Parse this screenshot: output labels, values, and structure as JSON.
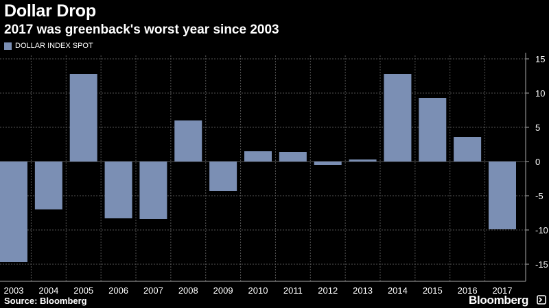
{
  "title": "Dollar Drop",
  "subtitle": "2017 was greenback's worst year since 2003",
  "legend_label": "DOLLAR INDEX SPOT",
  "source": "Source: Bloomberg",
  "brand": "Bloomberg",
  "brand_icon": "bloomberg-terminal-icon",
  "colors": {
    "background": "#000000",
    "bar": "#7b8fb4",
    "grid": "#555555",
    "text": "#ffffff"
  },
  "chart_data": {
    "type": "bar",
    "categories": [
      "2003",
      "2004",
      "2005",
      "2006",
      "2007",
      "2008",
      "2009",
      "2010",
      "2011",
      "2012",
      "2013",
      "2014",
      "2015",
      "2016",
      "2017"
    ],
    "series": [
      {
        "name": "DOLLAR INDEX SPOT",
        "values": [
          -14.7,
          -7.0,
          12.8,
          -8.3,
          -8.4,
          6.0,
          -4.3,
          1.5,
          1.4,
          -0.5,
          0.3,
          12.8,
          9.3,
          3.6,
          -9.9
        ]
      }
    ],
    "ylim": [
      -17.5,
      15.5
    ],
    "yticks": [
      15,
      10,
      5,
      0,
      -5,
      -10,
      -15
    ],
    "ytick_labels": [
      "15",
      "10",
      "5",
      "0",
      "-5",
      "-10",
      "-15"
    ],
    "yaxis_position": "right",
    "grid": true
  }
}
